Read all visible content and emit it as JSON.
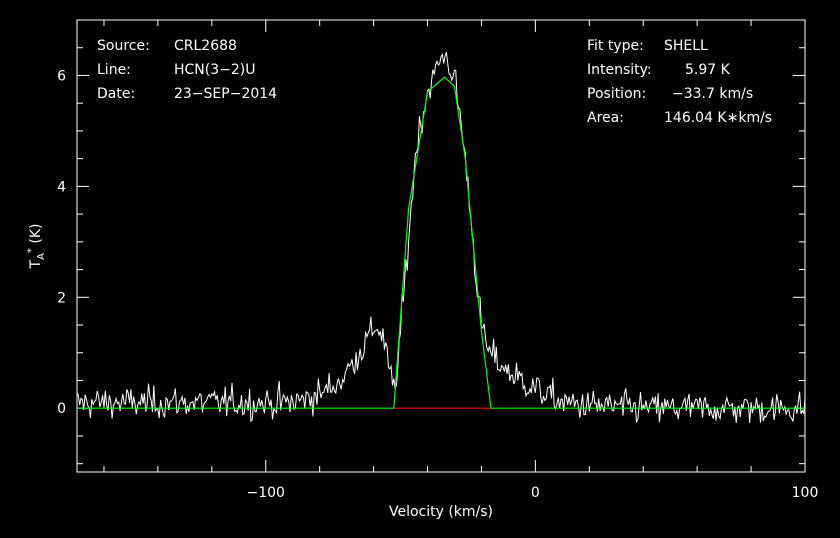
{
  "chart_data": {
    "type": "line",
    "xlabel": "Velocity (km/s)",
    "ylabel": "T_A* (K)",
    "xlim": [
      -170,
      100
    ],
    "ylim": [
      -1.15,
      7.0
    ],
    "xticks": [
      -100,
      0,
      100
    ],
    "yticks": [
      0,
      2,
      4,
      6
    ],
    "grid": false,
    "info_left": [
      {
        "key": "Source:",
        "value": "CRL2688"
      },
      {
        "key": "Line:",
        "value": "HCN(3−2)U"
      },
      {
        "key": "Date:",
        "value": "23−SEP−2014"
      }
    ],
    "info_right": [
      {
        "key": "Fit type:",
        "value": "SHELL"
      },
      {
        "key": "Intensity:",
        "value": "5.97 K"
      },
      {
        "key": "Position:",
        "value": "−33.7 km/s"
      },
      {
        "key": "Area:",
        "value": "146.04 K∗km/s"
      }
    ],
    "spectrum": {
      "color": "#ffffff",
      "noise_rms": 0.25,
      "x": [
        -170,
        -90,
        -80,
        -72,
        -68,
        -64,
        -60,
        -58,
        -56,
        -54,
        -52,
        -48,
        -44,
        -40,
        -36,
        -33.7,
        -30,
        -28,
        -26,
        -24,
        -22,
        -20,
        -18,
        -16,
        -10,
        0,
        10,
        20,
        40,
        70,
        100
      ],
      "y": [
        0.1,
        0.1,
        0.25,
        0.5,
        0.8,
        1.1,
        1.45,
        1.45,
        1.2,
        0.6,
        0.3,
        2.5,
        4.8,
        5.7,
        6.2,
        6.4,
        5.95,
        5.3,
        4.5,
        3.5,
        2.4,
        1.5,
        1.1,
        0.95,
        0.65,
        0.35,
        0.1,
        0.05,
        0.0,
        0.0,
        0.0
      ]
    },
    "fit": {
      "color": "#00ff00",
      "x": [
        -170,
        -52.5,
        -47,
        -40,
        -33.7,
        -30,
        -26,
        -22,
        -20,
        -16.5,
        100
      ],
      "y": [
        0,
        0,
        3.6,
        5.7,
        5.97,
        5.8,
        4.5,
        2.4,
        1.4,
        0,
        0
      ]
    },
    "baseline": {
      "color": "#ff0000",
      "x": [
        -52.5,
        -16.5
      ],
      "y": [
        0,
        0
      ]
    }
  }
}
